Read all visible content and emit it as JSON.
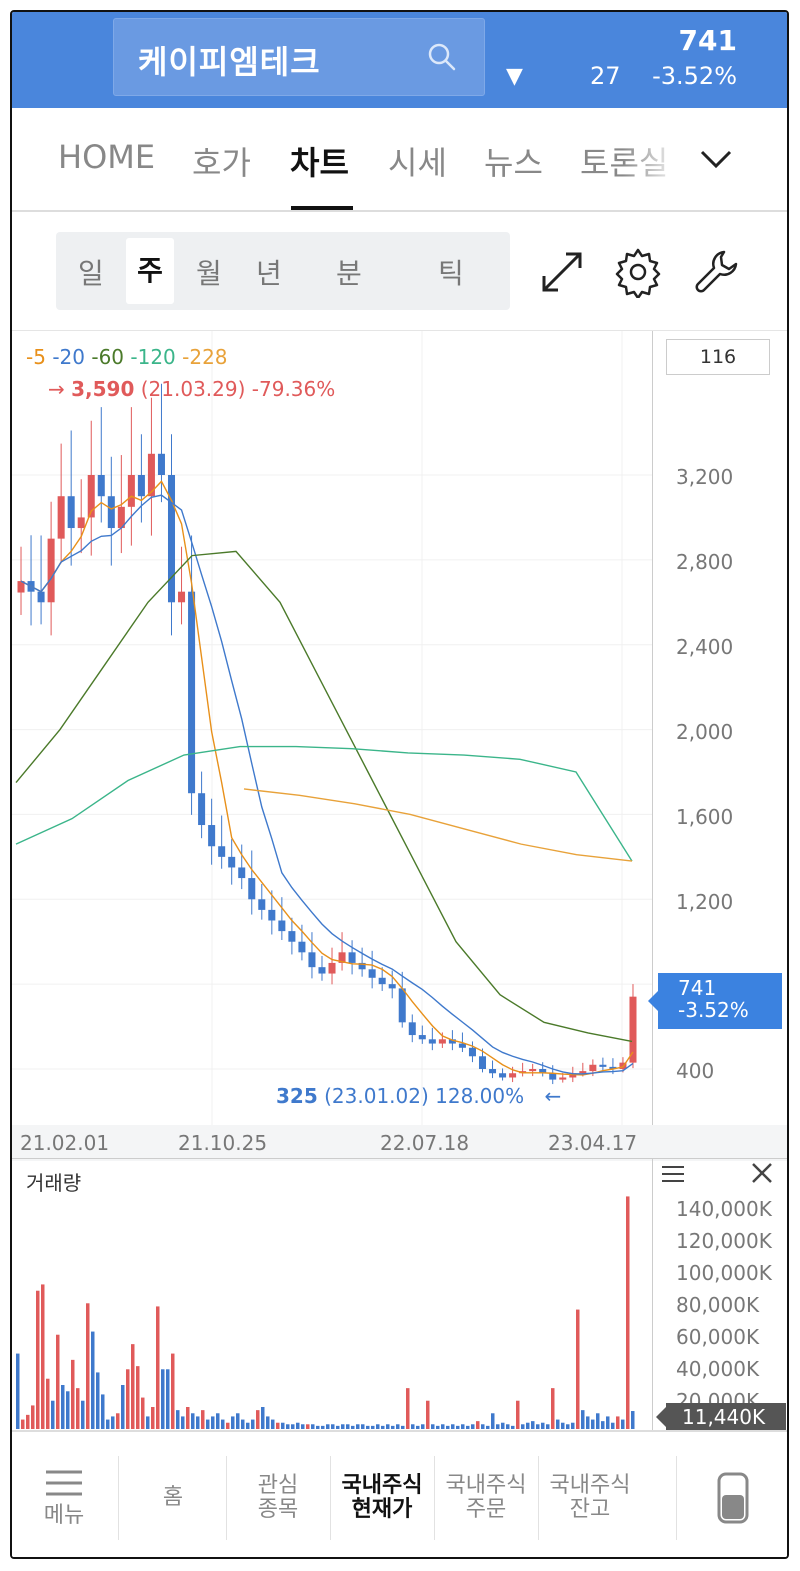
{
  "header": {
    "stock_name": "케이피엠테크",
    "price": "741",
    "direction_symbol": "▼",
    "change": "27",
    "change_pct": "-3.52%"
  },
  "tabs": [
    {
      "label": "HOME",
      "active": false
    },
    {
      "label": "호가",
      "active": false
    },
    {
      "label": "차트",
      "active": true
    },
    {
      "label": "시세",
      "active": false
    },
    {
      "label": "뉴스",
      "active": false
    },
    {
      "label": "토론실",
      "active": false
    }
  ],
  "periods": [
    {
      "label": "일",
      "active": false
    },
    {
      "label": "주",
      "active": true
    },
    {
      "label": "월",
      "active": false
    },
    {
      "label": "년",
      "active": false
    },
    {
      "label": "분",
      "active": false
    },
    {
      "label": "틱",
      "active": false
    }
  ],
  "tools": {
    "expand_icon": "expand-arrows-icon",
    "settings_icon": "gear-icon",
    "wrench_icon": "wrench-icon"
  },
  "chart": {
    "count_box": "116",
    "ma_legend": [
      {
        "label": "5",
        "color": "#e8901a"
      },
      {
        "label": "20",
        "color": "#3f79cc"
      },
      {
        "label": "60",
        "color": "#4b7a2a"
      },
      {
        "label": "120",
        "color": "#3bb58a"
      },
      {
        "label": "228",
        "color": "#e8a23a"
      }
    ],
    "max_marker": {
      "arrow": "→",
      "value": "3,590",
      "date": "(21.03.29)",
      "pct": "-79.36%"
    },
    "min_marker": {
      "value": "325",
      "date": "(23.01.02)",
      "pct": "128.00%",
      "arrow": "←"
    },
    "current_price": {
      "price": "741",
      "pct": "-3.52%"
    },
    "colors": {
      "up": "#e05a5a",
      "down": "#3f79cc"
    }
  },
  "chart_data": {
    "type": "candlestick",
    "title": "",
    "y_ticks": [
      "3,200",
      "2,800",
      "2,400",
      "2,000",
      "1,600",
      "1,200",
      "400"
    ],
    "x_ticks": [
      "21.02.01",
      "21.10.25",
      "22.07.18",
      "23.04.17"
    ],
    "close_series": [
      2700,
      2650,
      2600,
      2900,
      3100,
      2950,
      3000,
      3200,
      3100,
      2950,
      3050,
      3200,
      3100,
      3300,
      3200,
      2600,
      2650,
      1700,
      1550,
      1450,
      1400,
      1350,
      1300,
      1200,
      1150,
      1100,
      1050,
      1000,
      950,
      880,
      850,
      900,
      950,
      900,
      870,
      830,
      800,
      780,
      620,
      560,
      540,
      520,
      540,
      520,
      500,
      460,
      400,
      380,
      360,
      380,
      390,
      400,
      380,
      350,
      360,
      380,
      390,
      420,
      410,
      400,
      430,
      741
    ],
    "ma_lines": [
      {
        "name": "60",
        "values": [
          1750,
          2000,
          2300,
          2600,
          2820,
          2840,
          2600,
          2200,
          1800,
          1400,
          1000,
          750,
          620,
          570,
          530
        ]
      },
      {
        "name": "120",
        "values": [
          1460,
          1580,
          1760,
          1880,
          1920,
          1920,
          1910,
          1890,
          1880,
          1860,
          1800,
          1380
        ]
      },
      {
        "name": "228",
        "values": [
          1720,
          1690,
          1650,
          1600,
          1530,
          1460,
          1410,
          1380
        ]
      }
    ]
  },
  "volume": {
    "title": "거래량",
    "ticks": [
      "140,000K",
      "120,000K",
      "100,000K",
      "80,000K",
      "60,000K",
      "40,000K",
      "20,000K"
    ],
    "current": "11,440K",
    "bars": [
      {
        "v": 48000,
        "up": false
      },
      {
        "v": 6000,
        "up": true
      },
      {
        "v": 9000,
        "up": true
      },
      {
        "v": 15000,
        "up": true
      },
      {
        "v": 88000,
        "up": true
      },
      {
        "v": 92000,
        "up": true
      },
      {
        "v": 32000,
        "up": true
      },
      {
        "v": 18000,
        "up": false
      },
      {
        "v": 60000,
        "up": true
      },
      {
        "v": 28000,
        "up": false
      },
      {
        "v": 24000,
        "up": false
      },
      {
        "v": 44000,
        "up": true
      },
      {
        "v": 26000,
        "up": true
      },
      {
        "v": 18000,
        "up": false
      },
      {
        "v": 80000,
        "up": true
      },
      {
        "v": 62000,
        "up": false
      },
      {
        "v": 36000,
        "up": false
      },
      {
        "v": 22000,
        "up": false
      },
      {
        "v": 6000,
        "up": false
      },
      {
        "v": 8000,
        "up": false
      },
      {
        "v": 10000,
        "up": true
      },
      {
        "v": 28000,
        "up": false
      },
      {
        "v": 38000,
        "up": true
      },
      {
        "v": 54000,
        "up": true
      },
      {
        "v": 40000,
        "up": true
      },
      {
        "v": 20000,
        "up": true
      },
      {
        "v": 8000,
        "up": false
      },
      {
        "v": 14000,
        "up": true
      },
      {
        "v": 78000,
        "up": true
      },
      {
        "v": 38000,
        "up": false
      },
      {
        "v": 38000,
        "up": false
      },
      {
        "v": 48000,
        "up": true
      },
      {
        "v": 12000,
        "up": false
      },
      {
        "v": 8000,
        "up": false
      },
      {
        "v": 14000,
        "up": true
      },
      {
        "v": 10000,
        "up": false
      },
      {
        "v": 8000,
        "up": false
      },
      {
        "v": 12000,
        "up": true
      },
      {
        "v": 6000,
        "up": false
      },
      {
        "v": 8000,
        "up": false
      },
      {
        "v": 10000,
        "up": false
      },
      {
        "v": 6000,
        "up": false
      },
      {
        "v": 4000,
        "up": true
      },
      {
        "v": 8000,
        "up": false
      },
      {
        "v": 10000,
        "up": false
      },
      {
        "v": 6000,
        "up": false
      },
      {
        "v": 4000,
        "up": false
      },
      {
        "v": 6000,
        "up": false
      },
      {
        "v": 12000,
        "up": true
      },
      {
        "v": 14000,
        "up": false
      },
      {
        "v": 8000,
        "up": false
      },
      {
        "v": 6000,
        "up": false
      },
      {
        "v": 4000,
        "up": true
      },
      {
        "v": 4000,
        "up": false
      },
      {
        "v": 3000,
        "up": false
      },
      {
        "v": 3000,
        "up": false
      },
      {
        "v": 4000,
        "up": false
      },
      {
        "v": 3000,
        "up": false
      },
      {
        "v": 3000,
        "up": true
      },
      {
        "v": 3000,
        "up": false
      },
      {
        "v": 2000,
        "up": false
      },
      {
        "v": 2000,
        "up": false
      },
      {
        "v": 3000,
        "up": false
      },
      {
        "v": 3000,
        "up": false
      },
      {
        "v": 2000,
        "up": false
      },
      {
        "v": 3000,
        "up": false
      },
      {
        "v": 3000,
        "up": false
      },
      {
        "v": 2000,
        "up": false
      },
      {
        "v": 3000,
        "up": false
      },
      {
        "v": 3000,
        "up": false
      },
      {
        "v": 2000,
        "up": false
      },
      {
        "v": 2000,
        "up": false
      },
      {
        "v": 3000,
        "up": false
      },
      {
        "v": 2000,
        "up": false
      },
      {
        "v": 3000,
        "up": false
      },
      {
        "v": 2000,
        "up": false
      },
      {
        "v": 3000,
        "up": false
      },
      {
        "v": 2000,
        "up": false
      },
      {
        "v": 26000,
        "up": true
      },
      {
        "v": 3000,
        "up": false
      },
      {
        "v": 2000,
        "up": false
      },
      {
        "v": 3000,
        "up": false
      },
      {
        "v": 18000,
        "up": true
      },
      {
        "v": 3000,
        "up": false
      },
      {
        "v": 2000,
        "up": false
      },
      {
        "v": 3000,
        "up": false
      },
      {
        "v": 2000,
        "up": false
      },
      {
        "v": 3000,
        "up": false
      },
      {
        "v": 2000,
        "up": false
      },
      {
        "v": 3000,
        "up": false
      },
      {
        "v": 2000,
        "up": false
      },
      {
        "v": 3000,
        "up": false
      },
      {
        "v": 5000,
        "up": true
      },
      {
        "v": 3000,
        "up": false
      },
      {
        "v": 2000,
        "up": false
      },
      {
        "v": 10000,
        "up": false
      },
      {
        "v": 3000,
        "up": false
      },
      {
        "v": 4000,
        "up": false
      },
      {
        "v": 3000,
        "up": false
      },
      {
        "v": 2000,
        "up": false
      },
      {
        "v": 18000,
        "up": true
      },
      {
        "v": 3000,
        "up": false
      },
      {
        "v": 4000,
        "up": false
      },
      {
        "v": 5000,
        "up": false
      },
      {
        "v": 3000,
        "up": false
      },
      {
        "v": 4000,
        "up": false
      },
      {
        "v": 3000,
        "up": false
      },
      {
        "v": 26000,
        "up": true
      },
      {
        "v": 6000,
        "up": false
      },
      {
        "v": 4000,
        "up": false
      },
      {
        "v": 3000,
        "up": false
      },
      {
        "v": 4000,
        "up": false
      },
      {
        "v": 76000,
        "up": true
      },
      {
        "v": 12000,
        "up": false
      },
      {
        "v": 8000,
        "up": false
      },
      {
        "v": 6000,
        "up": false
      },
      {
        "v": 10000,
        "up": false
      },
      {
        "v": 5000,
        "up": false
      },
      {
        "v": 8000,
        "up": false
      },
      {
        "v": 4000,
        "up": false
      },
      {
        "v": 8000,
        "up": true
      },
      {
        "v": 6000,
        "up": false
      },
      {
        "v": 148000,
        "up": true
      },
      {
        "v": 11440,
        "up": false
      }
    ]
  },
  "bottom_nav": [
    {
      "label": "메뉴",
      "icon": "hamburger-menu-icon",
      "active": false
    },
    {
      "label": "홈",
      "active": false
    },
    {
      "label": "관심\n종목",
      "active": false
    },
    {
      "label": "국내주식\n현재가",
      "active": true
    },
    {
      "label": "국내주식\n주문",
      "active": false
    },
    {
      "label": "국내주식\n잔고",
      "active": false
    },
    {
      "label": "",
      "icon": "phone-icon",
      "active": false
    }
  ]
}
